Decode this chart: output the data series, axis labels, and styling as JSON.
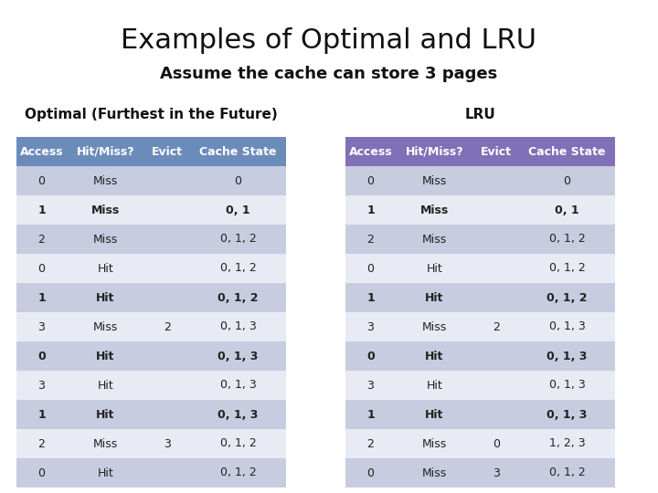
{
  "title": "Examples of Optimal and LRU",
  "subtitle": "Assume the cache can store 3 pages",
  "optimal_label": "Optimal (Furthest in the Future)",
  "lru_label": "LRU",
  "headers": [
    "Access",
    "Hit/Miss?",
    "Evict",
    "Cache State"
  ],
  "optimal_rows": [
    [
      "0",
      "Miss",
      "",
      "0"
    ],
    [
      "1",
      "Miss",
      "",
      "0, 1"
    ],
    [
      "2",
      "Miss",
      "",
      "0, 1, 2"
    ],
    [
      "0",
      "Hit",
      "",
      "0, 1, 2"
    ],
    [
      "1",
      "Hit",
      "",
      "0, 1, 2"
    ],
    [
      "3",
      "Miss",
      "2",
      "0, 1, 3"
    ],
    [
      "0",
      "Hit",
      "",
      "0, 1, 3"
    ],
    [
      "3",
      "Hit",
      "",
      "0, 1, 3"
    ],
    [
      "1",
      "Hit",
      "",
      "0, 1, 3"
    ],
    [
      "2",
      "Miss",
      "3",
      "0, 1, 2"
    ],
    [
      "0",
      "Hit",
      "",
      "0, 1, 2"
    ]
  ],
  "lru_rows": [
    [
      "0",
      "Miss",
      "",
      "0"
    ],
    [
      "1",
      "Miss",
      "",
      "0, 1"
    ],
    [
      "2",
      "Miss",
      "",
      "0, 1, 2"
    ],
    [
      "0",
      "Hit",
      "",
      "0, 1, 2"
    ],
    [
      "1",
      "Hit",
      "",
      "0, 1, 2"
    ],
    [
      "3",
      "Miss",
      "2",
      "0, 1, 3"
    ],
    [
      "0",
      "Hit",
      "",
      "0, 1, 3"
    ],
    [
      "3",
      "Hit",
      "",
      "0, 1, 3"
    ],
    [
      "1",
      "Hit",
      "",
      "0, 1, 3"
    ],
    [
      "2",
      "Miss",
      "0",
      "1, 2, 3"
    ],
    [
      "0",
      "Miss",
      "3",
      "0, 1, 2"
    ]
  ],
  "bold_rows": [
    1,
    4,
    6,
    8
  ],
  "header_bg_optimal": "#6b8cba",
  "header_bg_lru": "#8070b8",
  "row_bg_even": "#c8cce0",
  "row_bg_odd": "#e8eaf4",
  "header_text_color": "#ffffff",
  "cell_text_color": "#222222",
  "background_color": "#ffffff",
  "title_fontsize": 22,
  "subtitle_fontsize": 13,
  "label_fontsize": 11,
  "header_fontsize": 9,
  "cell_fontsize": 9
}
